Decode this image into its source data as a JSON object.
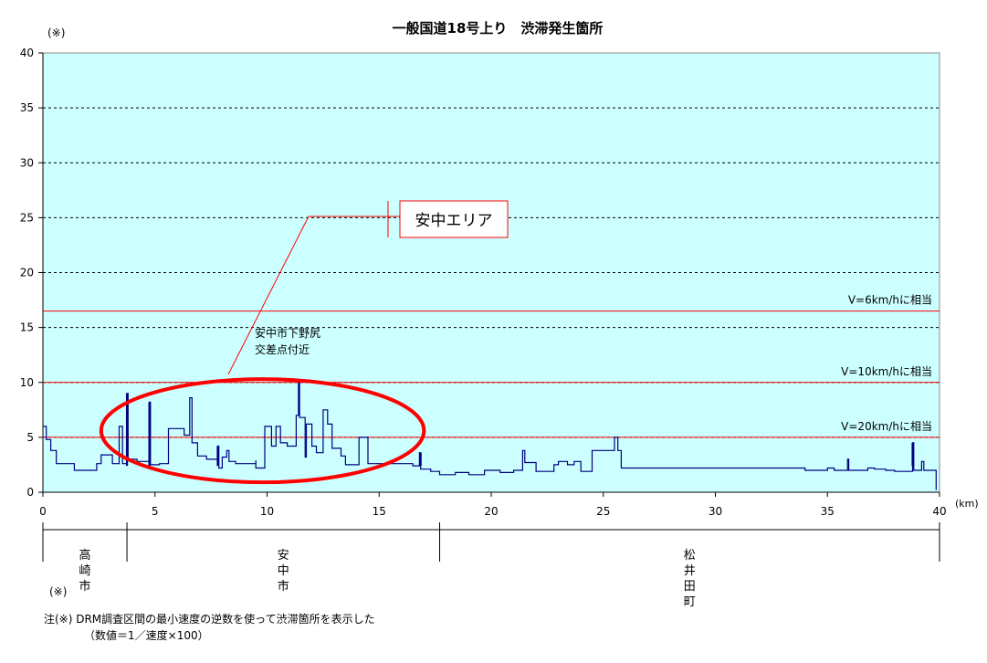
{
  "chart_data": {
    "type": "line",
    "title": "一般国道18号上り　渋滞発生箇所",
    "ylabel": "(※)",
    "xlabel": "(km)",
    "xlim": [
      0,
      40
    ],
    "ylim": [
      0,
      40
    ],
    "xticks": [
      0,
      5,
      10,
      15,
      20,
      25,
      30,
      35,
      40
    ],
    "yticks": [
      0,
      5,
      10,
      15,
      20,
      25,
      30,
      35,
      40
    ],
    "grid": true,
    "background_color": "#ccffff",
    "line_color": "#000080",
    "series": [
      {
        "points": [
          [
            0.0,
            6.0
          ],
          [
            0.15,
            6.0
          ],
          [
            0.15,
            4.8
          ],
          [
            0.35,
            4.8
          ],
          [
            0.35,
            3.8
          ],
          [
            0.6,
            3.8
          ],
          [
            0.6,
            2.6
          ],
          [
            1.4,
            2.6
          ],
          [
            1.4,
            2.0
          ],
          [
            2.4,
            2.0
          ],
          [
            2.4,
            2.6
          ],
          [
            2.6,
            2.6
          ],
          [
            2.6,
            3.4
          ],
          [
            3.1,
            3.4
          ],
          [
            3.1,
            2.6
          ],
          [
            3.4,
            2.6
          ],
          [
            3.4,
            6.0
          ],
          [
            3.55,
            6.0
          ],
          [
            3.55,
            2.6
          ],
          [
            3.75,
            2.6
          ],
          [
            3.75,
            9.0
          ],
          [
            3.8,
            9.0
          ],
          [
            3.8,
            3.0
          ],
          [
            4.2,
            3.0
          ],
          [
            4.2,
            2.8
          ],
          [
            4.75,
            2.8
          ],
          [
            4.75,
            8.2
          ],
          [
            4.8,
            8.2
          ],
          [
            4.8,
            2.5
          ],
          [
            5.2,
            2.5
          ],
          [
            5.2,
            2.6
          ],
          [
            5.6,
            2.6
          ],
          [
            5.6,
            5.8
          ],
          [
            6.3,
            5.8
          ],
          [
            6.3,
            5.2
          ],
          [
            6.55,
            5.2
          ],
          [
            6.55,
            8.6
          ],
          [
            6.65,
            8.6
          ],
          [
            6.65,
            4.5
          ],
          [
            6.9,
            4.5
          ],
          [
            6.9,
            3.3
          ],
          [
            7.3,
            3.3
          ],
          [
            7.3,
            3.0
          ],
          [
            7.8,
            3.0
          ],
          [
            7.8,
            4.2
          ],
          [
            7.85,
            4.2
          ],
          [
            7.85,
            2.2
          ],
          [
            8.0,
            2.2
          ],
          [
            8.0,
            3.2
          ],
          [
            8.2,
            3.2
          ],
          [
            8.2,
            3.8
          ],
          [
            8.3,
            3.8
          ],
          [
            8.3,
            2.8
          ],
          [
            8.6,
            2.8
          ],
          [
            8.6,
            2.6
          ],
          [
            9.5,
            2.6
          ],
          [
            9.5,
            2.9
          ],
          [
            9.5,
            2.2
          ],
          [
            9.9,
            2.2
          ],
          [
            9.9,
            6.0
          ],
          [
            10.2,
            6.0
          ],
          [
            10.2,
            4.2
          ],
          [
            10.4,
            4.2
          ],
          [
            10.4,
            6.0
          ],
          [
            10.6,
            6.0
          ],
          [
            10.6,
            4.5
          ],
          [
            10.9,
            4.5
          ],
          [
            10.9,
            4.2
          ],
          [
            11.3,
            4.2
          ],
          [
            11.3,
            7.0
          ],
          [
            11.4,
            7.0
          ],
          [
            11.4,
            10.0
          ],
          [
            11.45,
            10.0
          ],
          [
            11.45,
            6.8
          ],
          [
            11.7,
            6.8
          ],
          [
            11.7,
            3.2
          ],
          [
            11.75,
            3.2
          ],
          [
            11.75,
            6.2
          ],
          [
            12.0,
            6.2
          ],
          [
            12.0,
            4.2
          ],
          [
            12.2,
            4.2
          ],
          [
            12.2,
            3.6
          ],
          [
            12.5,
            3.6
          ],
          [
            12.5,
            7.5
          ],
          [
            12.7,
            7.5
          ],
          [
            12.7,
            6.2
          ],
          [
            12.9,
            6.2
          ],
          [
            12.9,
            4.0
          ],
          [
            13.3,
            4.0
          ],
          [
            13.3,
            3.3
          ],
          [
            13.5,
            3.3
          ],
          [
            13.5,
            2.5
          ],
          [
            14.1,
            2.5
          ],
          [
            14.1,
            5.0
          ],
          [
            14.5,
            5.0
          ],
          [
            14.5,
            2.6
          ],
          [
            16.5,
            2.6
          ],
          [
            16.5,
            2.4
          ],
          [
            16.8,
            2.4
          ],
          [
            16.8,
            3.6
          ],
          [
            16.85,
            3.6
          ],
          [
            16.85,
            2.1
          ],
          [
            17.3,
            2.1
          ],
          [
            17.3,
            1.9
          ],
          [
            17.7,
            1.9
          ],
          [
            17.7,
            1.6
          ],
          [
            18.4,
            1.6
          ],
          [
            18.4,
            1.8
          ],
          [
            19.0,
            1.8
          ],
          [
            19.0,
            1.6
          ],
          [
            19.7,
            1.6
          ],
          [
            19.7,
            2.0
          ],
          [
            20.4,
            2.0
          ],
          [
            20.4,
            1.8
          ],
          [
            21.0,
            1.8
          ],
          [
            21.0,
            2.0
          ],
          [
            21.4,
            2.0
          ],
          [
            21.4,
            3.8
          ],
          [
            21.5,
            3.8
          ],
          [
            21.5,
            2.7
          ],
          [
            22.0,
            2.7
          ],
          [
            22.0,
            1.9
          ],
          [
            22.8,
            1.9
          ],
          [
            22.8,
            2.5
          ],
          [
            23.0,
            2.5
          ],
          [
            23.0,
            2.8
          ],
          [
            23.4,
            2.8
          ],
          [
            23.4,
            2.5
          ],
          [
            23.7,
            2.5
          ],
          [
            23.7,
            2.8
          ],
          [
            24.0,
            2.8
          ],
          [
            24.0,
            1.9
          ],
          [
            24.5,
            1.9
          ],
          [
            24.5,
            3.8
          ],
          [
            25.5,
            3.8
          ],
          [
            25.5,
            5.0
          ],
          [
            25.65,
            5.0
          ],
          [
            25.65,
            3.8
          ],
          [
            25.8,
            3.8
          ],
          [
            25.8,
            2.2
          ],
          [
            34.0,
            2.2
          ],
          [
            34.0,
            2.0
          ],
          [
            35.0,
            2.0
          ],
          [
            35.0,
            2.2
          ],
          [
            35.3,
            2.2
          ],
          [
            35.3,
            2.0
          ],
          [
            35.9,
            2.0
          ],
          [
            35.9,
            3.0
          ],
          [
            35.95,
            3.0
          ],
          [
            35.95,
            2.0
          ],
          [
            36.8,
            2.0
          ],
          [
            36.8,
            2.2
          ],
          [
            37.1,
            2.2
          ],
          [
            37.1,
            2.1
          ],
          [
            37.6,
            2.1
          ],
          [
            37.6,
            2.0
          ],
          [
            38.0,
            2.0
          ],
          [
            38.0,
            1.9
          ],
          [
            38.8,
            1.9
          ],
          [
            38.8,
            4.5
          ],
          [
            38.85,
            4.5
          ],
          [
            38.85,
            2.0
          ],
          [
            39.2,
            2.0
          ],
          [
            39.2,
            2.8
          ],
          [
            39.3,
            2.8
          ],
          [
            39.3,
            2.0
          ],
          [
            39.85,
            2.0
          ],
          [
            39.85,
            0.2
          ]
        ]
      }
    ],
    "spikes": [
      {
        "x": 3.75,
        "y": 9.0
      },
      {
        "x": 4.75,
        "y": 8.2
      },
      {
        "x": 7.8,
        "y": 4.2
      },
      {
        "x": 16.85,
        "y": 3.6
      },
      {
        "x": 38.8,
        "y": 4.5
      }
    ],
    "reference_lines": [
      {
        "y": 16.5,
        "label": "V=6km/hに相当",
        "color": "#ff0000"
      },
      {
        "y": 10.0,
        "label": "V=10km/hに相当",
        "color": "#ff0000"
      },
      {
        "y": 5.0,
        "label": "V=20km/hに相当",
        "color": "#ff0000"
      }
    ],
    "annotations": {
      "area_callout": {
        "label": "安中エリア",
        "box_color": "#ff0000"
      },
      "point_callout": {
        "label_line1": "安中市下野尻",
        "label_line2": "交差点付近",
        "x": 11.4,
        "y": 10.0
      },
      "highlight_ellipse": {
        "x_center": 9.8,
        "y_center": 5.6,
        "x_half_width": 7.2,
        "y_half_height": 4.7,
        "color": "#ff0000"
      }
    },
    "regions": [
      {
        "name": "高\n崎\n市",
        "from": 0,
        "to": 3.75
      },
      {
        "name": "安\n中\n市",
        "from": 3.75,
        "to": 17.7
      },
      {
        "name": "松\n井\n田\n町",
        "from": 17.7,
        "to": 40
      }
    ]
  },
  "notes": {
    "asterisk": "(※)",
    "line1": "注(※) DRM調査区間の最小速度の逆数を使って渋滞箇所を表示した",
    "line2": "（数値＝1／速度×100）"
  }
}
